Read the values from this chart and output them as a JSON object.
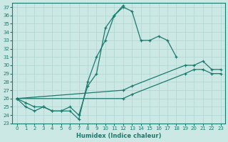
{
  "xlabel": "Humidex (Indice chaleur)",
  "bg_color": "#cce8e5",
  "grid_color": "#b0d4d0",
  "line_color": "#1a7a6e",
  "xlim": [
    -0.5,
    23.5
  ],
  "ylim": [
    23,
    37.5
  ],
  "xticks": [
    0,
    1,
    2,
    3,
    4,
    5,
    6,
    7,
    8,
    9,
    10,
    11,
    12,
    13,
    14,
    15,
    16,
    17,
    18,
    19,
    20,
    21,
    22,
    23
  ],
  "yticks": [
    23,
    24,
    25,
    26,
    27,
    28,
    29,
    30,
    31,
    32,
    33,
    34,
    35,
    36,
    37
  ],
  "lines": [
    {
      "segments": [
        [
          [
            0,
            26
          ],
          [
            1,
            25.5
          ],
          [
            2,
            25
          ],
          [
            3,
            25
          ],
          [
            4,
            24.5
          ],
          [
            5,
            24.5
          ],
          [
            6,
            24.5
          ],
          [
            7,
            23.5
          ],
          [
            8,
            28
          ],
          [
            9,
            31
          ],
          [
            10,
            33
          ],
          [
            11,
            36
          ],
          [
            12,
            37
          ],
          [
            13,
            36.5
          ],
          [
            14,
            33
          ],
          [
            15,
            33
          ],
          [
            16,
            33.5
          ],
          [
            17,
            33
          ],
          [
            18,
            31
          ]
        ]
      ]
    },
    {
      "segments": [
        [
          [
            0,
            26
          ],
          [
            1,
            25
          ],
          [
            2,
            24.5
          ],
          [
            3,
            25
          ],
          [
            4,
            24.5
          ],
          [
            5,
            24.5
          ],
          [
            6,
            25
          ],
          [
            7,
            24
          ],
          [
            8,
            27.5
          ],
          [
            9,
            29
          ],
          [
            10,
            34.5
          ],
          [
            11,
            36
          ],
          [
            12,
            37.2
          ]
        ]
      ]
    },
    {
      "segments": [
        [
          [
            0,
            26
          ],
          [
            12,
            27
          ],
          [
            13,
            27.5
          ],
          [
            19,
            30
          ],
          [
            20,
            30
          ],
          [
            21,
            30.5
          ],
          [
            22,
            29.5
          ],
          [
            23,
            29.5
          ]
        ]
      ]
    },
    {
      "segments": [
        [
          [
            0,
            26
          ],
          [
            12,
            26
          ],
          [
            13,
            26.5
          ],
          [
            19,
            29
          ],
          [
            20,
            29.5
          ],
          [
            21,
            29.5
          ],
          [
            22,
            29
          ],
          [
            23,
            29
          ]
        ]
      ]
    }
  ]
}
